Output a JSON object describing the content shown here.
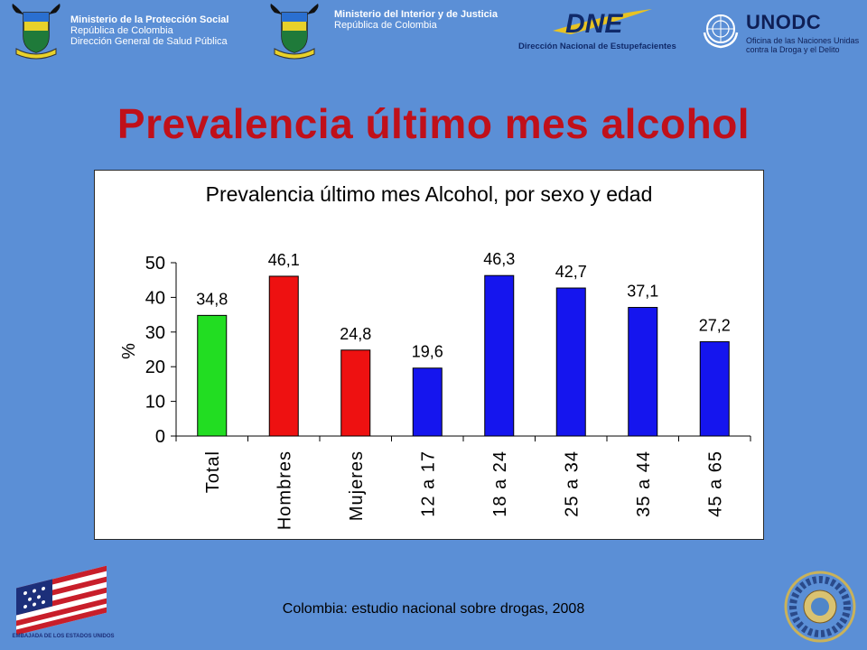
{
  "header": {
    "ministry_health": {
      "line1": "Ministerio de la Protección Social",
      "line2": "República de Colombia",
      "line3": "Dirección General de Salud Pública"
    },
    "ministry_interior": {
      "line1": "Ministerio del Interior y de Justicia",
      "line2": "República de Colombia"
    },
    "crest_motto": "Libertad y Orden",
    "dne": {
      "acronym": "DNE",
      "name": "Dirección Nacional de Estupefacientes"
    },
    "unodc": {
      "acronym": "UNODC",
      "line1": "Oficina de las Naciones Unidas",
      "line2": "contra la Droga y el Delito"
    }
  },
  "slide_title": "Prevalencia último mes alcohol",
  "footer_text": "Colombia: estudio nacional sobre drogas, 2008",
  "logos": {
    "usa_embassy": "EMBAJADA DE LOS ESTADOS UNIDOS"
  },
  "colors": {
    "background": "#5b8fd6",
    "title": "#c0101a",
    "total_bar": "#22dd22",
    "sex_bar": "#ee1111",
    "age_bar": "#1515ee"
  },
  "chart_data": {
    "type": "bar",
    "title": "Prevalencia último mes Alcohol, por sexo y edad",
    "ylabel": "%",
    "ylim": [
      0,
      50
    ],
    "yticks": [
      0,
      10,
      20,
      30,
      40,
      50
    ],
    "categories": [
      "Total",
      "Hombres",
      "Mujeres",
      "12 a 17",
      "18 a 24",
      "25 a 34",
      "35 a 44",
      "45 a 65"
    ],
    "values": [
      34.8,
      46.1,
      24.8,
      19.6,
      46.3,
      42.7,
      37.1,
      27.2
    ],
    "value_labels": [
      "34,8",
      "46,1",
      "24,8",
      "19,6",
      "46,3",
      "42,7",
      "37,1",
      "27,2"
    ],
    "bar_colors": [
      "#22dd22",
      "#ee1111",
      "#ee1111",
      "#1515ee",
      "#1515ee",
      "#1515ee",
      "#1515ee",
      "#1515ee"
    ],
    "grid": false,
    "legend": "none"
  }
}
